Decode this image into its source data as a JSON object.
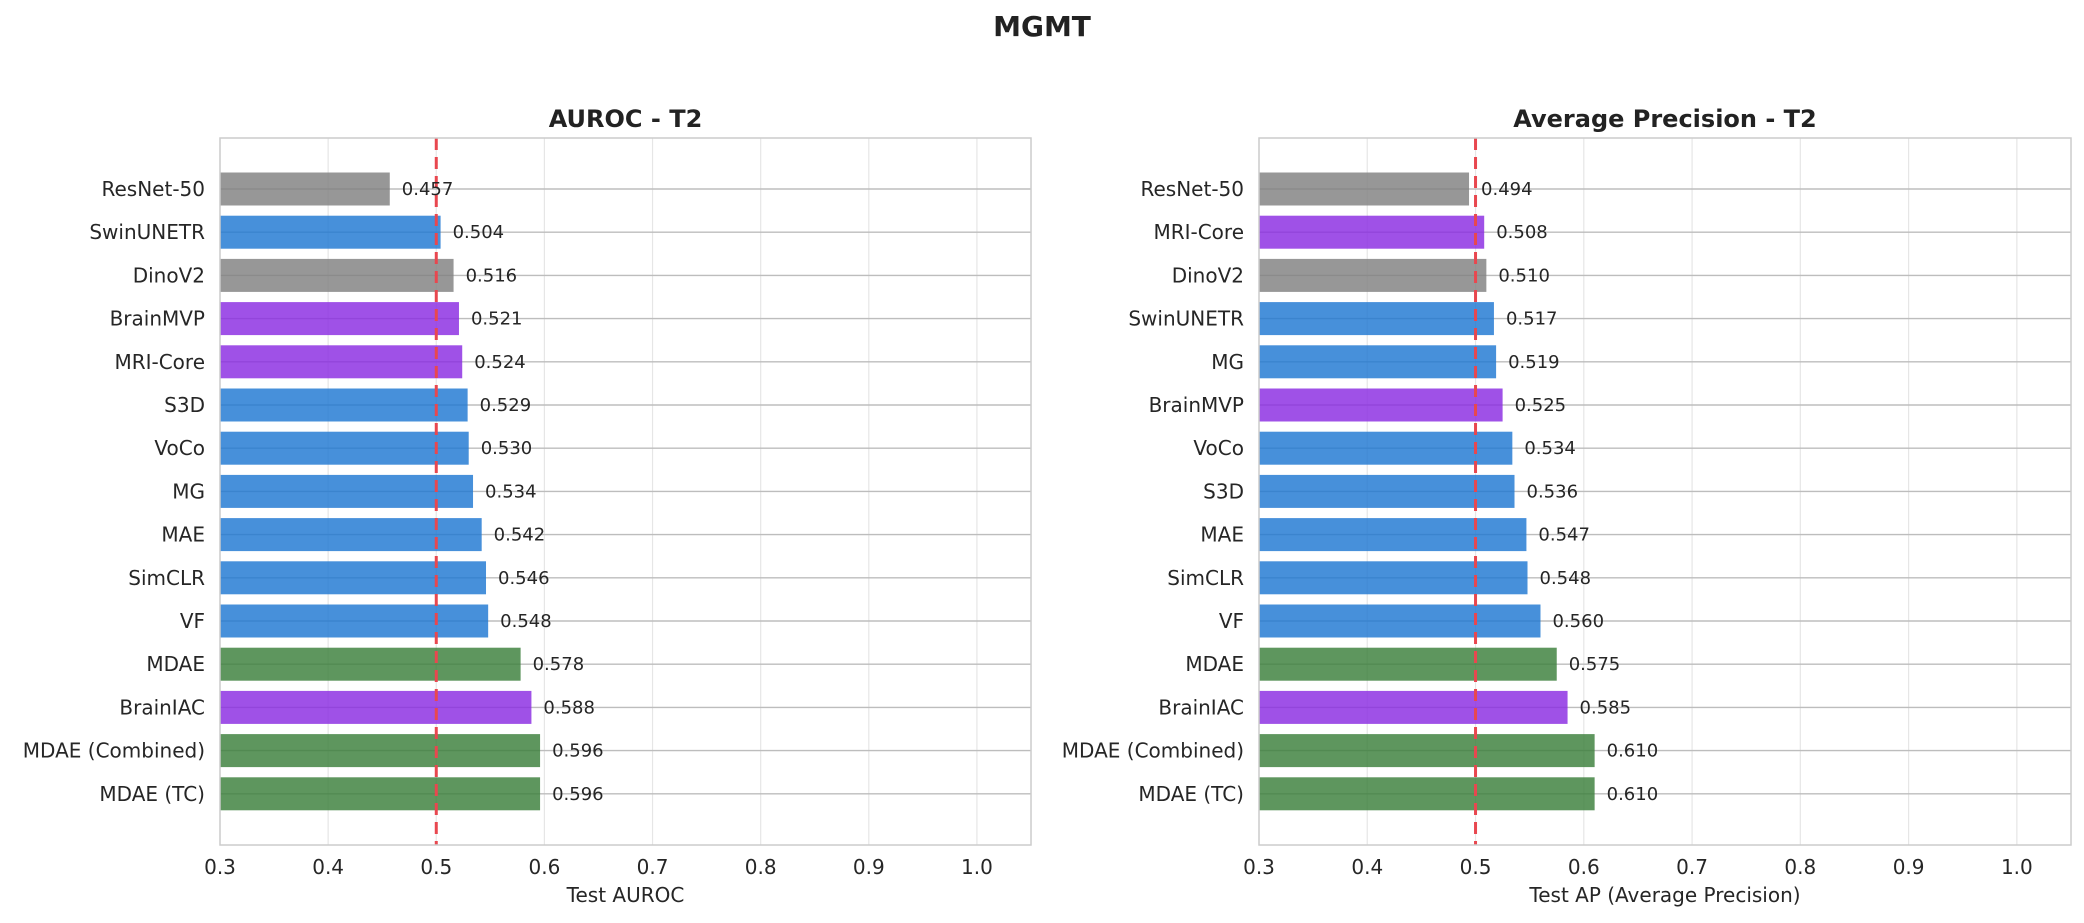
{
  "figure_title": "MGMT",
  "colors": {
    "baseline": "#808080",
    "ssl": "#1f77d2",
    "foundation": "#8a2be2",
    "mdae": "#3a7f3a",
    "reference_line": "#e8474f",
    "grid": "#e6e6e6",
    "frame": "#cccccc"
  },
  "chart_data": [
    {
      "type": "bar",
      "orientation": "horizontal",
      "title": "AUROC - T2",
      "xlabel": "Test AUROC",
      "ylabel": "",
      "xlim": [
        0.3,
        1.05
      ],
      "xticks": [
        0.3,
        0.4,
        0.5,
        0.6,
        0.7,
        0.8,
        0.9,
        1.0
      ],
      "reference_line": 0.5,
      "grid": true,
      "categories": [
        "ResNet-50",
        "SwinUNETR",
        "DinoV2",
        "BrainMVP",
        "MRI-Core",
        "S3D",
        "VoCo",
        "MG",
        "MAE",
        "SimCLR",
        "VF",
        "MDAE",
        "BrainIAC",
        "MDAE (Combined)",
        "MDAE (TC)"
      ],
      "values": [
        0.457,
        0.504,
        0.516,
        0.521,
        0.524,
        0.529,
        0.53,
        0.534,
        0.542,
        0.546,
        0.548,
        0.578,
        0.588,
        0.596,
        0.596
      ],
      "labels": [
        "0.457",
        "0.504",
        "0.516",
        "0.521",
        "0.524",
        "0.529",
        "0.530",
        "0.534",
        "0.542",
        "0.546",
        "0.548",
        "0.578",
        "0.588",
        "0.596",
        "0.596"
      ],
      "bar_colors": [
        "#808080",
        "#1f77d2",
        "#808080",
        "#8a2be2",
        "#8a2be2",
        "#1f77d2",
        "#1f77d2",
        "#1f77d2",
        "#1f77d2",
        "#1f77d2",
        "#1f77d2",
        "#3a7f3a",
        "#8a2be2",
        "#3a7f3a",
        "#3a7f3a"
      ]
    },
    {
      "type": "bar",
      "orientation": "horizontal",
      "title": "Average Precision - T2",
      "xlabel": "Test AP (Average Precision)",
      "ylabel": "",
      "xlim": [
        0.3,
        1.05
      ],
      "xticks": [
        0.3,
        0.4,
        0.5,
        0.6,
        0.7,
        0.8,
        0.9,
        1.0
      ],
      "reference_line": 0.5,
      "grid": true,
      "categories": [
        "ResNet-50",
        "MRI-Core",
        "DinoV2",
        "SwinUNETR",
        "MG",
        "BrainMVP",
        "VoCo",
        "S3D",
        "MAE",
        "SimCLR",
        "VF",
        "MDAE",
        "BrainIAC",
        "MDAE (Combined)",
        "MDAE (TC)"
      ],
      "values": [
        0.494,
        0.508,
        0.51,
        0.517,
        0.519,
        0.525,
        0.534,
        0.536,
        0.547,
        0.548,
        0.56,
        0.575,
        0.585,
        0.61,
        0.61
      ],
      "labels": [
        "0.494",
        "0.508",
        "0.510",
        "0.517",
        "0.519",
        "0.525",
        "0.534",
        "0.536",
        "0.547",
        "0.548",
        "0.560",
        "0.575",
        "0.585",
        "0.610",
        "0.610"
      ],
      "bar_colors": [
        "#808080",
        "#8a2be2",
        "#808080",
        "#1f77d2",
        "#1f77d2",
        "#8a2be2",
        "#1f77d2",
        "#1f77d2",
        "#1f77d2",
        "#1f77d2",
        "#1f77d2",
        "#3a7f3a",
        "#8a2be2",
        "#3a7f3a",
        "#3a7f3a"
      ]
    }
  ]
}
